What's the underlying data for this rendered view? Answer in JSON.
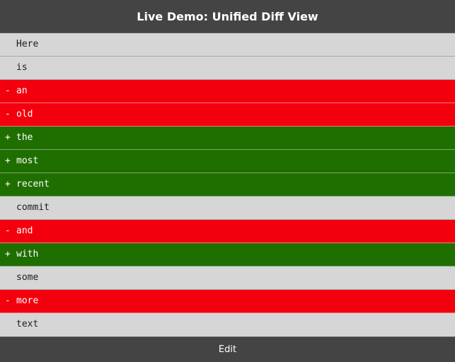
{
  "header": {
    "title": "Live Demo: Unified Diff View"
  },
  "diff": {
    "lines": [
      {
        "type": "context",
        "marker": "",
        "text": "Here"
      },
      {
        "type": "context",
        "marker": "",
        "text": "is"
      },
      {
        "type": "removed",
        "marker": "-",
        "text": "an"
      },
      {
        "type": "removed",
        "marker": "-",
        "text": "old"
      },
      {
        "type": "added",
        "marker": "+",
        "text": "the"
      },
      {
        "type": "added",
        "marker": "+",
        "text": "most"
      },
      {
        "type": "added",
        "marker": "+",
        "text": "recent"
      },
      {
        "type": "context",
        "marker": "",
        "text": "commit"
      },
      {
        "type": "removed",
        "marker": "-",
        "text": "and"
      },
      {
        "type": "added",
        "marker": "+",
        "text": "with"
      },
      {
        "type": "context",
        "marker": "",
        "text": "some"
      },
      {
        "type": "removed",
        "marker": "-",
        "text": "more"
      },
      {
        "type": "context",
        "marker": "",
        "text": "text"
      }
    ]
  },
  "footer": {
    "edit_label": "Edit"
  },
  "colors": {
    "bar": "#444444",
    "context": "#d6d6d6",
    "removed": "#f2000e",
    "added": "#1f6e00"
  }
}
